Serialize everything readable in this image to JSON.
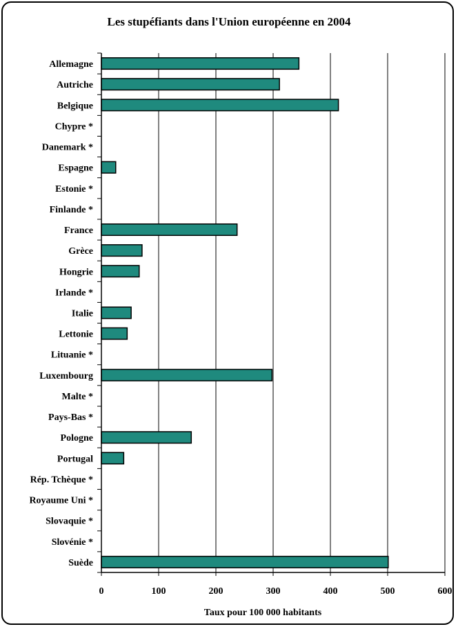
{
  "chart_data": {
    "type": "bar",
    "orientation": "horizontal",
    "title": "Les stupéfiants dans l'Union européenne en 2004",
    "xlabel": "Taux pour 100 000 habitants",
    "ylabel": "",
    "xlim": [
      0,
      600
    ],
    "xticks": [
      0,
      100,
      200,
      300,
      400,
      500,
      600
    ],
    "grid": "vertical",
    "bar_color": "#1f8a7e",
    "categories": [
      "Allemagne",
      "Autriche",
      "Belgique",
      "Chypre *",
      "Danemark *",
      "Espagne",
      "Estonie *",
      "Finlande *",
      "France",
      "Grèce",
      "Hongrie",
      "Irlande *",
      "Italie",
      "Lettonie",
      "Lituanie *",
      "Luxembourg",
      "Malte *",
      "Pays-Bas *",
      "Pologne",
      "Portugal",
      "Rép. Tchèque *",
      "Royaume Uni *",
      "Slovaquie *",
      "Slovénie *",
      "Suède"
    ],
    "values": [
      345,
      311,
      414,
      null,
      null,
      25,
      null,
      null,
      237,
      71,
      66,
      null,
      52,
      45,
      null,
      298,
      null,
      null,
      157,
      39,
      null,
      null,
      null,
      null,
      501
    ]
  }
}
